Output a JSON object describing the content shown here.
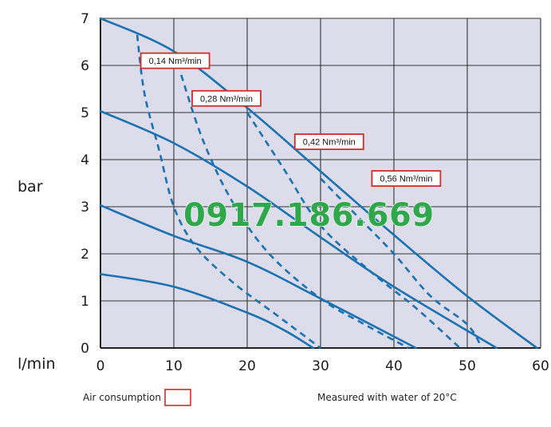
{
  "chart_data": {
    "type": "line",
    "ylabel": "bar",
    "xlabel": "l/min",
    "xlim": [
      0,
      60
    ],
    "ylim": [
      0,
      7
    ],
    "x_ticks": [
      0,
      10,
      20,
      30,
      40,
      50,
      60
    ],
    "y_ticks": [
      0,
      1,
      2,
      3,
      4,
      5,
      6,
      7
    ],
    "grid": true,
    "plot_background": "#dcdcea",
    "line_color": "#1a72b2",
    "pressure_curves": [
      {
        "points": [
          [
            0,
            1.57
          ],
          [
            10,
            1.3
          ],
          [
            20,
            0.75
          ],
          [
            25,
            0.38
          ],
          [
            29,
            0
          ]
        ]
      },
      {
        "points": [
          [
            0,
            3.03
          ],
          [
            10,
            2.38
          ],
          [
            20,
            1.83
          ],
          [
            30,
            1.05
          ],
          [
            43,
            0
          ]
        ]
      },
      {
        "points": [
          [
            0,
            5.03
          ],
          [
            10,
            4.35
          ],
          [
            20,
            3.43
          ],
          [
            30,
            2.35
          ],
          [
            40,
            1.3
          ],
          [
            54,
            0
          ]
        ]
      },
      {
        "points": [
          [
            0,
            7.0
          ],
          [
            10,
            6.3
          ],
          [
            20,
            5.1
          ],
          [
            30,
            3.75
          ],
          [
            40,
            2.4
          ],
          [
            50,
            1.1
          ],
          [
            59.5,
            0
          ]
        ]
      }
    ],
    "air_consumption_curves": [
      {
        "label": "0,14 Nm³/min",
        "points": [
          [
            5,
            6.65
          ],
          [
            6,
            5.4
          ],
          [
            8,
            4.2
          ],
          [
            10,
            3.0
          ],
          [
            13,
            2.15
          ],
          [
            18,
            1.4
          ],
          [
            24,
            0.7
          ],
          [
            30,
            0
          ]
        ]
      },
      {
        "label": "0,28 Nm³/min",
        "points": [
          [
            11,
            5.8
          ],
          [
            14,
            4.4
          ],
          [
            18,
            3.1
          ],
          [
            23,
            2.0
          ],
          [
            30,
            1.05
          ],
          [
            36,
            0.5
          ],
          [
            42,
            0
          ]
        ]
      },
      {
        "label": "0,42 Nm³/min",
        "points": [
          [
            20,
            5.0
          ],
          [
            25,
            3.8
          ],
          [
            30,
            2.6
          ],
          [
            37,
            1.6
          ],
          [
            43,
            0.85
          ],
          [
            49,
            0
          ]
        ]
      },
      {
        "label": "0,56 Nm³/min",
        "points": [
          [
            30,
            3.6
          ],
          [
            35,
            2.8
          ],
          [
            40,
            2.0
          ],
          [
            45,
            1.1
          ],
          [
            50,
            0.5
          ],
          [
            52,
            0
          ]
        ]
      }
    ],
    "annotations": [
      {
        "text": "0,14 Nm³/min",
        "x": 5.5,
        "y": 6.1
      },
      {
        "text": "0,28 Nm³/min",
        "x": 12.5,
        "y": 5.3
      },
      {
        "text": "0,42 Nm³/min",
        "x": 26.5,
        "y": 4.38
      },
      {
        "text": "0,56 Nm³/min",
        "x": 37,
        "y": 3.6
      }
    ]
  },
  "watermark": "0917.186.669",
  "footer": {
    "legend_label": "Air consumption",
    "legend_box_color": "#d42b2b",
    "note": "Measured with water of 20°C"
  }
}
